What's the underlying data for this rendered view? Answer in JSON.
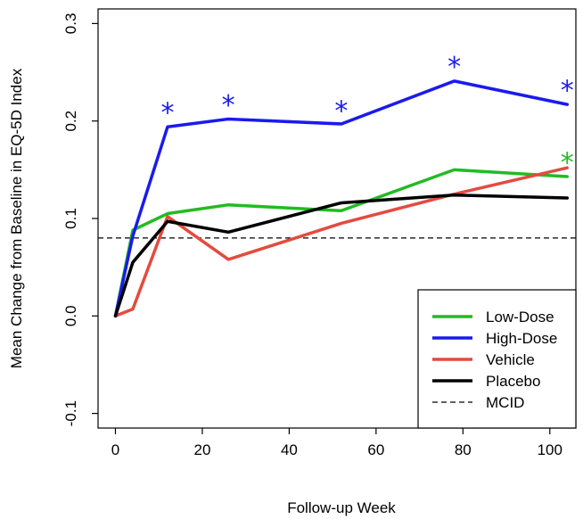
{
  "chart_data": {
    "type": "line",
    "xlabel": "Follow-up Week",
    "ylabel": "Mean Change from Baseline in EQ-5D Index",
    "xlim": [
      -4,
      106
    ],
    "ylim": [
      -0.115,
      0.315
    ],
    "xticks": [
      0,
      20,
      40,
      60,
      80,
      100
    ],
    "yticks": [
      -0.1,
      0.0,
      0.1,
      0.2,
      0.3
    ],
    "xtick_labels": [
      "0",
      "20",
      "40",
      "60",
      "80",
      "100"
    ],
    "ytick_labels": [
      "-0.1",
      "0.0",
      "0.1",
      "0.2",
      "0.3"
    ],
    "grid": false,
    "legend_position": "bottom-right",
    "series": [
      {
        "name": "Low-Dose",
        "color": "#22bb22",
        "x": [
          0,
          4,
          12,
          26,
          52,
          78,
          104
        ],
        "y": [
          0.0,
          0.088,
          0.105,
          0.114,
          0.108,
          0.15,
          0.143
        ]
      },
      {
        "name": "High-Dose",
        "color": "#1a1aee",
        "x": [
          0,
          4,
          12,
          26,
          52,
          78,
          104
        ],
        "y": [
          0.0,
          0.082,
          0.194,
          0.202,
          0.197,
          0.241,
          0.217
        ]
      },
      {
        "name": "Vehicle",
        "color": "#e34b3f",
        "x": [
          0,
          4,
          12,
          26,
          52,
          78,
          104
        ],
        "y": [
          0.0,
          0.007,
          0.102,
          0.058,
          0.095,
          0.125,
          0.152
        ]
      },
      {
        "name": "Placebo",
        "color": "#000000",
        "x": [
          0,
          4,
          12,
          26,
          52,
          78,
          104
        ],
        "y": [
          0.0,
          0.055,
          0.097,
          0.086,
          0.116,
          0.124,
          0.121
        ]
      }
    ],
    "reference_line": {
      "name": "MCID",
      "y": 0.08,
      "style": "dashed",
      "color": "#000000"
    },
    "annotations": [
      {
        "text": "*",
        "x": 12,
        "y": 0.212,
        "color": "#1a1aee"
      },
      {
        "text": "*",
        "x": 26,
        "y": 0.22,
        "color": "#1a1aee"
      },
      {
        "text": "*",
        "x": 52,
        "y": 0.214,
        "color": "#1a1aee"
      },
      {
        "text": "*",
        "x": 78,
        "y": 0.259,
        "color": "#1a1aee"
      },
      {
        "text": "*",
        "x": 104,
        "y": 0.235,
        "color": "#1a1aee"
      },
      {
        "text": "*",
        "x": 104,
        "y": 0.161,
        "color": "#22bb22"
      }
    ]
  }
}
